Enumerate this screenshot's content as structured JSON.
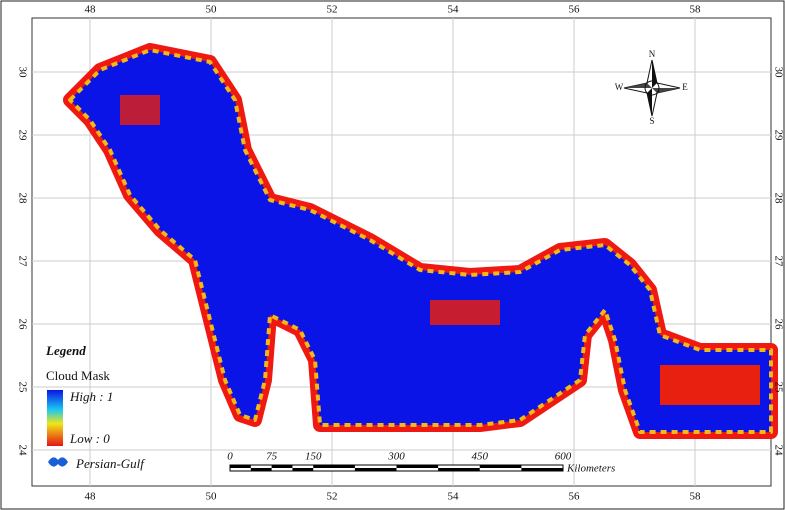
{
  "map": {
    "lon_ticks": [
      48,
      50,
      52,
      54,
      56,
      58
    ],
    "lat_ticks": [
      30,
      29,
      28,
      27,
      26,
      25,
      24
    ],
    "compass": {
      "n": "N",
      "e": "E",
      "s": "S",
      "w": "W"
    },
    "legend": {
      "title": "Legend",
      "layer": "Cloud Mask",
      "high": "High : 1",
      "low": "Low : 0",
      "feature": "Persian-Gulf"
    },
    "scale_bar": {
      "ticks": [
        0,
        75,
        150,
        300,
        450,
        600
      ],
      "unit": "Kilometers"
    }
  }
}
